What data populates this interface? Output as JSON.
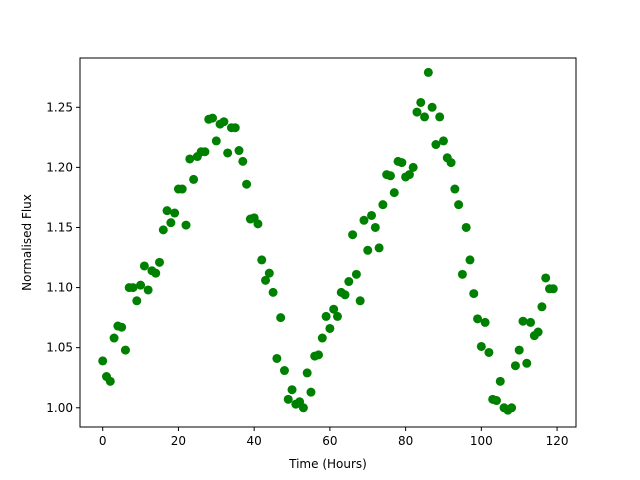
{
  "chart_data": {
    "type": "scatter",
    "title": "",
    "xlabel": "Time (Hours)",
    "ylabel": "Normalised Flux",
    "xlim": [
      -6,
      125
    ],
    "ylim": [
      0.984,
      1.291
    ],
    "xticks": [
      0,
      20,
      40,
      60,
      80,
      100,
      120
    ],
    "yticks": [
      1.0,
      1.05,
      1.1,
      1.15,
      1.2,
      1.25
    ],
    "ytick_labels": [
      "1.00",
      "1.05",
      "1.10",
      "1.15",
      "1.20",
      "1.25"
    ],
    "grid": false,
    "marker_color": "#008000",
    "series": [
      {
        "x": [
          0,
          1,
          2,
          3,
          4,
          5,
          6,
          7,
          8,
          9,
          10,
          11,
          12,
          13,
          14,
          15,
          16,
          17,
          18,
          19,
          20,
          21,
          22,
          23,
          24,
          25,
          26,
          27,
          28,
          29,
          30,
          31,
          32,
          33,
          34,
          35,
          36,
          37,
          38,
          39,
          40,
          41,
          42,
          43,
          44,
          45,
          46,
          47,
          48,
          49,
          50,
          51,
          52,
          53,
          54,
          55,
          56,
          57,
          58,
          59,
          60,
          61,
          62,
          63,
          64,
          65,
          66,
          67,
          68,
          69,
          70,
          71,
          72,
          73,
          74,
          75,
          76,
          77,
          78,
          79,
          80,
          81,
          82,
          83,
          84,
          85,
          86,
          87,
          88,
          89,
          90,
          91,
          92,
          93,
          94,
          95,
          96,
          97,
          98,
          99,
          100,
          101,
          102,
          103,
          104,
          105,
          106,
          107,
          108,
          109,
          110,
          111,
          112,
          113,
          114,
          115,
          116,
          117,
          118,
          119
        ],
        "y": [
          1.039,
          1.026,
          1.022,
          1.058,
          1.068,
          1.067,
          1.048,
          1.1,
          1.1,
          1.089,
          1.102,
          1.118,
          1.098,
          1.114,
          1.112,
          1.121,
          1.148,
          1.164,
          1.154,
          1.162,
          1.182,
          1.182,
          1.152,
          1.207,
          1.19,
          1.209,
          1.213,
          1.213,
          1.24,
          1.241,
          1.222,
          1.236,
          1.238,
          1.212,
          1.233,
          1.233,
          1.214,
          1.205,
          1.186,
          1.157,
          1.158,
          1.153,
          1.123,
          1.106,
          1.112,
          1.096,
          1.041,
          1.075,
          1.031,
          1.007,
          1.015,
          1.003,
          1.005,
          1.0,
          1.029,
          1.013,
          1.043,
          1.044,
          1.058,
          1.076,
          1.066,
          1.082,
          1.076,
          1.096,
          1.094,
          1.105,
          1.144,
          1.111,
          1.089,
          1.156,
          1.131,
          1.16,
          1.15,
          1.133,
          1.169,
          1.194,
          1.193,
          1.179,
          1.205,
          1.204,
          1.192,
          1.194,
          1.2,
          1.246,
          1.254,
          1.242,
          1.279,
          1.25,
          1.219,
          1.242,
          1.222,
          1.208,
          1.204,
          1.182,
          1.169,
          1.111,
          1.15,
          1.123,
          1.095,
          1.074,
          1.051,
          1.071,
          1.046,
          1.007,
          1.006,
          1.022,
          1.0,
          0.998,
          1.0,
          1.035,
          1.048,
          1.072,
          1.037,
          1.071,
          1.06,
          1.063,
          1.084,
          1.108,
          1.099,
          1.099
        ]
      }
    ]
  }
}
